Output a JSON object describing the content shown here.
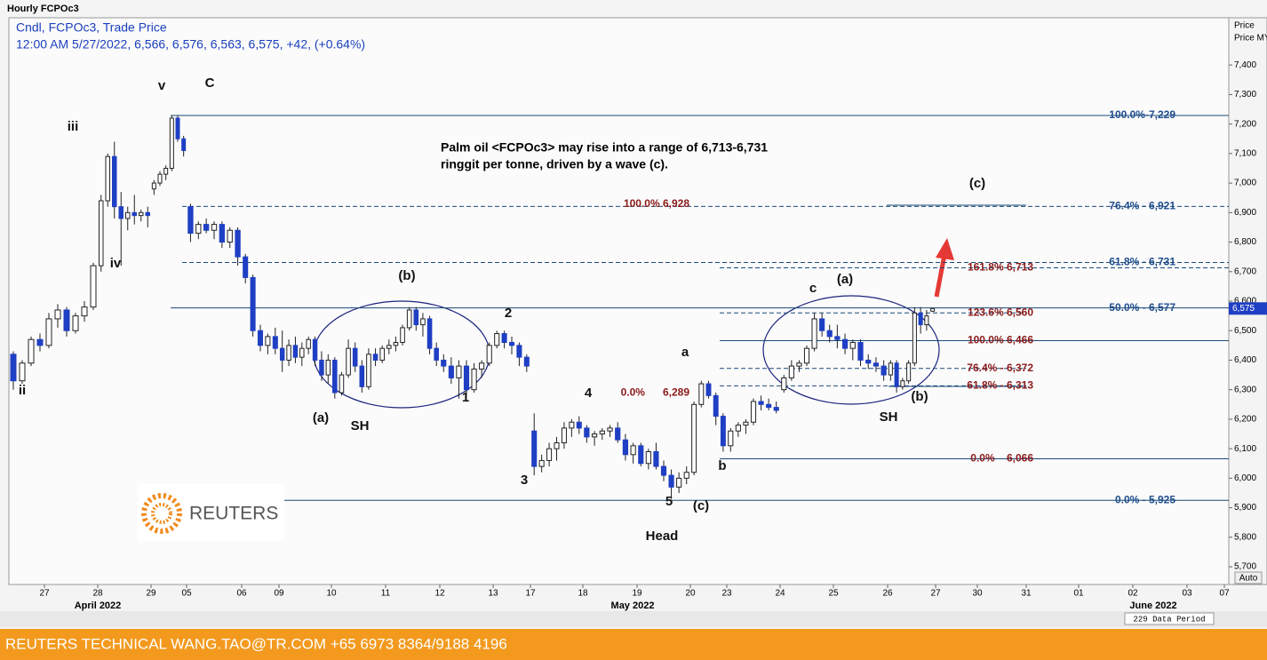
{
  "chart_data": {
    "type": "candlestick",
    "title": "Hourly FCPOc3",
    "header_lines": [
      "Cndl, FCPOc3, Trade Price",
      "12:00 AM 5/27/2022, 6,566, 6,576, 6,563, 6,575, +42, (+0.64%)"
    ],
    "axis_label": "Price MYR T",
    "auto_button": "Auto",
    "data_period": "229 Data Period",
    "months": [
      "April 2022",
      "May 2022",
      "June 2022"
    ],
    "note": [
      "Palm oil <FCPOc3> may rise into a range of 6,713-6,731",
      "ringgit per tonne, driven by a wave (c)."
    ],
    "footer": "REUTERS TECHNICAL  WANG.TAO@TR.COM  +65 6973 8364/9188 4196",
    "logo": "REUTERS",
    "up_color": "#ffffff",
    "down_color": "#1f3fc4",
    "ylim": [
      5640,
      7560
    ],
    "yticks": [
      {
        "value": 5700,
        "label": "5,700"
      },
      {
        "value": 5800,
        "label": "5,800"
      },
      {
        "value": 5900,
        "label": "5,900"
      },
      {
        "value": 6000,
        "label": "6,000"
      },
      {
        "value": 6100,
        "label": "6,100"
      },
      {
        "value": 6200,
        "label": "6,200"
      },
      {
        "value": 6300,
        "label": "6,300"
      },
      {
        "value": 6400,
        "label": "6,400"
      },
      {
        "value": 6500,
        "label": "6,500"
      },
      {
        "value": 6600,
        "label": "6,600"
      },
      {
        "value": 6700,
        "label": "6,700"
      },
      {
        "value": 6800,
        "label": "6,800"
      },
      {
        "value": 6900,
        "label": "6,900"
      },
      {
        "value": 7000,
        "label": "7,000"
      },
      {
        "value": 7100,
        "label": "7,100"
      },
      {
        "value": 7200,
        "label": "7,200"
      },
      {
        "value": 7300,
        "label": "7,300"
      },
      {
        "value": 7400,
        "label": "7,400"
      }
    ],
    "price_marker": {
      "value": 6575,
      "label": "6,575"
    },
    "categories": [
      "27",
      "28",
      "29",
      "05",
      "06",
      "09",
      "10",
      "11",
      "12",
      "13",
      "17",
      "18",
      "19",
      "20",
      "23",
      "24",
      "25",
      "26",
      "27",
      "30",
      "31",
      "01",
      "02",
      "03",
      "07"
    ],
    "ohlc": [
      [
        [
          6420,
          6430,
          6300,
          6330
        ],
        [
          6330,
          6400,
          6320,
          6390
        ],
        [
          6390,
          6480,
          6380,
          6470
        ],
        [
          6470,
          6490,
          6430,
          6450
        ],
        [
          6450,
          6560,
          6440,
          6540
        ],
        [
          6540,
          6590,
          6510,
          6570
        ],
        [
          6570,
          6580,
          6480,
          6500
        ],
        [
          6500,
          6560,
          6490,
          6550
        ],
        [
          6550,
          6600,
          6530,
          6580
        ],
        [
          6580,
          6730,
          6570,
          6720
        ]
      ],
      [
        [
          6720,
          6960,
          6700,
          6940
        ],
        [
          6940,
          7100,
          6920,
          7090
        ],
        [
          7090,
          7140,
          6880,
          6920
        ],
        [
          6920,
          6970,
          6720,
          6880
        ],
        [
          6880,
          6920,
          6840,
          6900
        ],
        [
          6900,
          6960,
          6860,
          6890
        ],
        [
          6890,
          6910,
          6870,
          6900
        ],
        [
          6900,
          6920,
          6850,
          6890
        ]
      ],
      [
        [
          6980,
          7010,
          6960,
          7000
        ],
        [
          7000,
          7040,
          6990,
          7030
        ],
        [
          7030,
          7060,
          7010,
          7050
        ],
        [
          7050,
          7229,
          7040,
          7220
        ],
        [
          7220,
          7229,
          7140,
          7150
        ],
        [
          7150,
          7160,
          7090,
          7110
        ]
      ],
      [
        [
          6920,
          6930,
          6800,
          6830
        ],
        [
          6830,
          6870,
          6810,
          6860
        ],
        [
          6860,
          6880,
          6830,
          6840
        ],
        [
          6840,
          6870,
          6810,
          6860
        ],
        [
          6860,
          6870,
          6780,
          6800
        ],
        [
          6800,
          6850,
          6780,
          6840
        ],
        [
          6840,
          6850,
          6720,
          6750
        ]
      ],
      [
        [
          6750,
          6760,
          6660,
          6680
        ],
        [
          6680,
          6690,
          6480,
          6500
        ],
        [
          6500,
          6520,
          6430,
          6450
        ],
        [
          6450,
          6490,
          6420,
          6480
        ],
        [
          6480,
          6510,
          6420,
          6440
        ]
      ],
      [
        [
          6440,
          6500,
          6360,
          6400
        ],
        [
          6400,
          6470,
          6380,
          6450
        ],
        [
          6450,
          6480,
          6390,
          6410
        ],
        [
          6410,
          6460,
          6380,
          6440
        ],
        [
          6440,
          6480,
          6420,
          6470
        ],
        [
          6470,
          6480,
          6380,
          6400
        ],
        [
          6400,
          6430,
          6330,
          6350
        ],
        [
          6350,
          6420,
          6320,
          6400
        ]
      ],
      [
        [
          6400,
          6410,
          6270,
          6290
        ],
        [
          6290,
          6360,
          6280,
          6350
        ],
        [
          6350,
          6470,
          6340,
          6440
        ],
        [
          6440,
          6460,
          6360,
          6380
        ],
        [
          6380,
          6400,
          6290,
          6310
        ],
        [
          6310,
          6440,
          6300,
          6420
        ],
        [
          6420,
          6440,
          6380,
          6400
        ],
        [
          6400,
          6450,
          6390,
          6440
        ]
      ],
      [
        [
          6440,
          6470,
          6420,
          6450
        ],
        [
          6450,
          6480,
          6430,
          6460
        ],
        [
          6460,
          6520,
          6450,
          6510
        ],
        [
          6510,
          6580,
          6500,
          6570
        ],
        [
          6570,
          6580,
          6500,
          6520
        ],
        [
          6520,
          6560,
          6480,
          6540
        ],
        [
          6540,
          6550,
          6420,
          6440
        ],
        [
          6440,
          6460,
          6380,
          6400
        ]
      ],
      [
        [
          6400,
          6420,
          6360,
          6380
        ],
        [
          6380,
          6410,
          6320,
          6340
        ],
        [
          6340,
          6400,
          6270,
          6380
        ],
        [
          6380,
          6400,
          6280,
          6300
        ],
        [
          6300,
          6390,
          6290,
          6370
        ],
        [
          6370,
          6400,
          6340,
          6390
        ],
        [
          6390,
          6460,
          6380,
          6450
        ]
      ],
      [
        [
          6450,
          6500,
          6440,
          6490
        ],
        [
          6490,
          6500,
          6440,
          6460
        ],
        [
          6460,
          6480,
          6420,
          6450
        ],
        [
          6450,
          6460,
          6380,
          6410
        ],
        [
          6410,
          6420,
          6360,
          6380
        ]
      ],
      [
        [
          6160,
          6220,
          6010,
          6040
        ],
        [
          6040,
          6080,
          6020,
          6060
        ],
        [
          6060,
          6120,
          6040,
          6100
        ],
        [
          6100,
          6140,
          6060,
          6120
        ],
        [
          6120,
          6190,
          6100,
          6170
        ],
        [
          6170,
          6200,
          6140,
          6190
        ],
        [
          6190,
          6210,
          6150,
          6170
        ]
      ],
      [
        [
          6170,
          6180,
          6120,
          6140
        ],
        [
          6140,
          6160,
          6110,
          6150
        ],
        [
          6150,
          6170,
          6130,
          6160
        ],
        [
          6160,
          6180,
          6140,
          6170
        ],
        [
          6170,
          6190,
          6120,
          6130
        ],
        [
          6130,
          6150,
          6060,
          6080
        ],
        [
          6080,
          6120,
          6050,
          6110
        ]
      ],
      [
        [
          6110,
          6120,
          6040,
          6050
        ],
        [
          6050,
          6100,
          6030,
          6090
        ],
        [
          6090,
          6120,
          6030,
          6040
        ],
        [
          6040,
          6060,
          5990,
          6010
        ],
        [
          6010,
          6030,
          5930,
          5970
        ],
        [
          5970,
          6020,
          5950,
          6000
        ],
        [
          6000,
          6040,
          5980,
          6020
        ]
      ],
      [
        [
          6020,
          6260,
          6010,
          6250
        ],
        [
          6250,
          6330,
          6240,
          6320
        ],
        [
          6320,
          6330,
          6270,
          6280
        ],
        [
          6280,
          6290,
          6180,
          6210
        ],
        [
          6210,
          6220,
          6090,
          6110
        ]
      ],
      [
        [
          6110,
          6170,
          6090,
          6160
        ],
        [
          6160,
          6190,
          6140,
          6180
        ],
        [
          6180,
          6200,
          6150,
          6190
        ],
        [
          6190,
          6270,
          6180,
          6260
        ],
        [
          6260,
          6280,
          6230,
          6250
        ],
        [
          6250,
          6270,
          6230,
          6240
        ],
        [
          6240,
          6260,
          6220,
          6230
        ]
      ],
      [
        [
          6300,
          6350,
          6290,
          6340
        ],
        [
          6340,
          6400,
          6330,
          6380
        ],
        [
          6380,
          6400,
          6360,
          6390
        ],
        [
          6390,
          6450,
          6380,
          6440
        ],
        [
          6440,
          6560,
          6430,
          6540
        ],
        [
          6540,
          6560,
          6480,
          6500
        ],
        [
          6500,
          6520,
          6460,
          6480
        ]
      ],
      [
        [
          6480,
          6520,
          6440,
          6470
        ],
        [
          6470,
          6490,
          6420,
          6440
        ],
        [
          6440,
          6470,
          6400,
          6460
        ],
        [
          6460,
          6470,
          6380,
          6400
        ],
        [
          6400,
          6420,
          6370,
          6390
        ],
        [
          6390,
          6410,
          6360,
          6380
        ],
        [
          6380,
          6400,
          6330,
          6350
        ]
      ],
      [
        [
          6350,
          6400,
          6330,
          6390
        ],
        [
          6390,
          6400,
          6290,
          6310
        ],
        [
          6310,
          6340,
          6300,
          6330
        ],
        [
          6330,
          6400,
          6320,
          6390
        ],
        [
          6390,
          6580,
          6380,
          6560
        ],
        [
          6560,
          6580,
          6490,
          6520
        ],
        [
          6520,
          6570,
          6500,
          6550
        ],
        [
          6566,
          6576,
          6563,
          6575
        ]
      ],
      [],
      [],
      [],
      [],
      [],
      [],
      []
    ],
    "fib_blue": [
      {
        "label": "100.0%-7,229",
        "value": 7229,
        "style": "solid"
      },
      {
        "label": "76.4% - 6,921",
        "value": 6921,
        "style": "dashed"
      },
      {
        "label": "61.8% - 6,731",
        "value": 6731,
        "style": "dashed"
      },
      {
        "label": "50.0% - 6,577",
        "value": 6577,
        "style": "solid"
      },
      {
        "label": "0.0% - 5,925",
        "value": 5925,
        "style": "solid"
      }
    ],
    "fib_red": [
      {
        "label": "161.8% 6,713",
        "value": 6713,
        "style": "dashed"
      },
      {
        "label": "123.6% 6,560",
        "value": 6560,
        "style": "dashed"
      },
      {
        "label": "100.0% 6,466",
        "value": 6466,
        "style": "solid"
      },
      {
        "label": "76.4% - 6,372",
        "value": 6372,
        "style": "dashed"
      },
      {
        "label": "61.8% - 6,313",
        "value": 6313,
        "style": "dashed"
      },
      {
        "label": "0.0%    6,066",
        "value": 6066,
        "style": "solid"
      }
    ],
    "fib_left": [
      {
        "label": "100.0% 6,928",
        "value": 6928
      },
      {
        "label": "0.0%      6,289",
        "value": 6289
      }
    ],
    "wave_labels": [
      "ii",
      "iii",
      "iv",
      "v",
      "C",
      "(a)",
      "SH",
      "(b)",
      "1",
      "2",
      "3",
      "4",
      "a",
      "5",
      "(c)",
      "Head",
      "b",
      "c",
      "(a)",
      "SH",
      "(b)",
      "(c)"
    ]
  }
}
